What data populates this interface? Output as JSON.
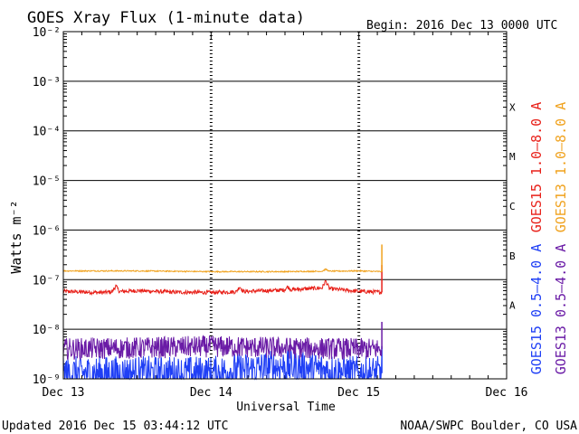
{
  "chart_data": {
    "type": "line",
    "title": "GOES Xray Flux (1-minute data)",
    "begin_label": "Begin:  2016 Dec 13 0000 UTC",
    "xlabel": "Universal Time",
    "ylabel": "Watts m⁻²",
    "footer_left": "Updated 2016 Dec 15 03:44:12 UTC",
    "footer_right": "NOAA/SWPC Boulder, CO USA",
    "y_scale": "log",
    "ylim": [
      1e-09,
      0.01
    ],
    "y_ticks": [
      {
        "value": 0.01,
        "label": "10⁻²"
      },
      {
        "value": 0.001,
        "label": "10⁻³"
      },
      {
        "value": 0.0001,
        "label": "10⁻⁴"
      },
      {
        "value": 1e-05,
        "label": "10⁻⁵"
      },
      {
        "value": 1e-06,
        "label": "10⁻⁶"
      },
      {
        "value": 1e-07,
        "label": "10⁻⁷"
      },
      {
        "value": 1e-08,
        "label": "10⁻⁸"
      },
      {
        "value": 1e-09,
        "label": "10⁻⁹"
      }
    ],
    "xlim": [
      "2016-12-13",
      "2016-12-16"
    ],
    "x_ticks": [
      {
        "value": "2016-12-13",
        "label": "Dec 13"
      },
      {
        "value": "2016-12-14",
        "label": "Dec 14"
      },
      {
        "value": "2016-12-15",
        "label": "Dec 15"
      },
      {
        "value": "2016-12-16",
        "label": "Dec 16"
      }
    ],
    "flare_classes": [
      {
        "label": "X",
        "value": 0.0001
      },
      {
        "label": "M",
        "value": 1e-05
      },
      {
        "label": "C",
        "value": 1e-06
      },
      {
        "label": "B",
        "value": 1e-07
      },
      {
        "label": "A",
        "value": 1e-08
      }
    ],
    "data_end": "2016-12-15 03:44",
    "grid": true,
    "legend_position": "right",
    "series": [
      {
        "name": "GOES15 1.0–8.0 A",
        "color": "#e8211a",
        "x": [
          "2016-12-13 00:00",
          "2016-12-13 06:00",
          "2016-12-13 12:00",
          "2016-12-13 18:00",
          "2016-12-14 00:00",
          "2016-12-14 06:00",
          "2016-12-14 12:00",
          "2016-12-14 18:00",
          "2016-12-15 00:00",
          "2016-12-15 03:44"
        ],
        "y": [
          5.8e-08,
          5.5e-08,
          6e-08,
          5.6e-08,
          5.5e-08,
          5.8e-08,
          6.2e-08,
          6.8e-08,
          5.8e-08,
          5.6e-08
        ]
      },
      {
        "name": "GOES13 1.0–8.0 A",
        "color": "#f0a21e",
        "x": [
          "2016-12-13 00:00",
          "2016-12-13 12:00",
          "2016-12-14 00:00",
          "2016-12-14 12:00",
          "2016-12-15 00:00",
          "2016-12-15 03:44"
        ],
        "y": [
          1.5e-07,
          1.5e-07,
          1.45e-07,
          1.45e-07,
          1.5e-07,
          1.45e-07
        ]
      },
      {
        "name": "GOES15 0.5–4.0 A",
        "color": "#1f3ff5",
        "x": [
          "2016-12-13 00:00",
          "2016-12-13 12:00",
          "2016-12-14 00:00",
          "2016-12-14 12:00",
          "2016-12-15 00:00",
          "2016-12-15 03:44"
        ],
        "y": [
          1.3e-09,
          1.3e-09,
          1.3e-09,
          1.8e-09,
          1.3e-09,
          1.3e-09
        ]
      },
      {
        "name": "GOES13 0.5–4.0 A",
        "color": "#6a1ba6",
        "x": [
          "2016-12-13 00:00",
          "2016-12-13 12:00",
          "2016-12-14 00:00",
          "2016-12-14 12:00",
          "2016-12-15 00:00",
          "2016-12-15 03:44"
        ],
        "y": [
          4e-09,
          4.2e-09,
          4.5e-09,
          4.2e-09,
          4e-09,
          4e-09
        ]
      }
    ]
  }
}
